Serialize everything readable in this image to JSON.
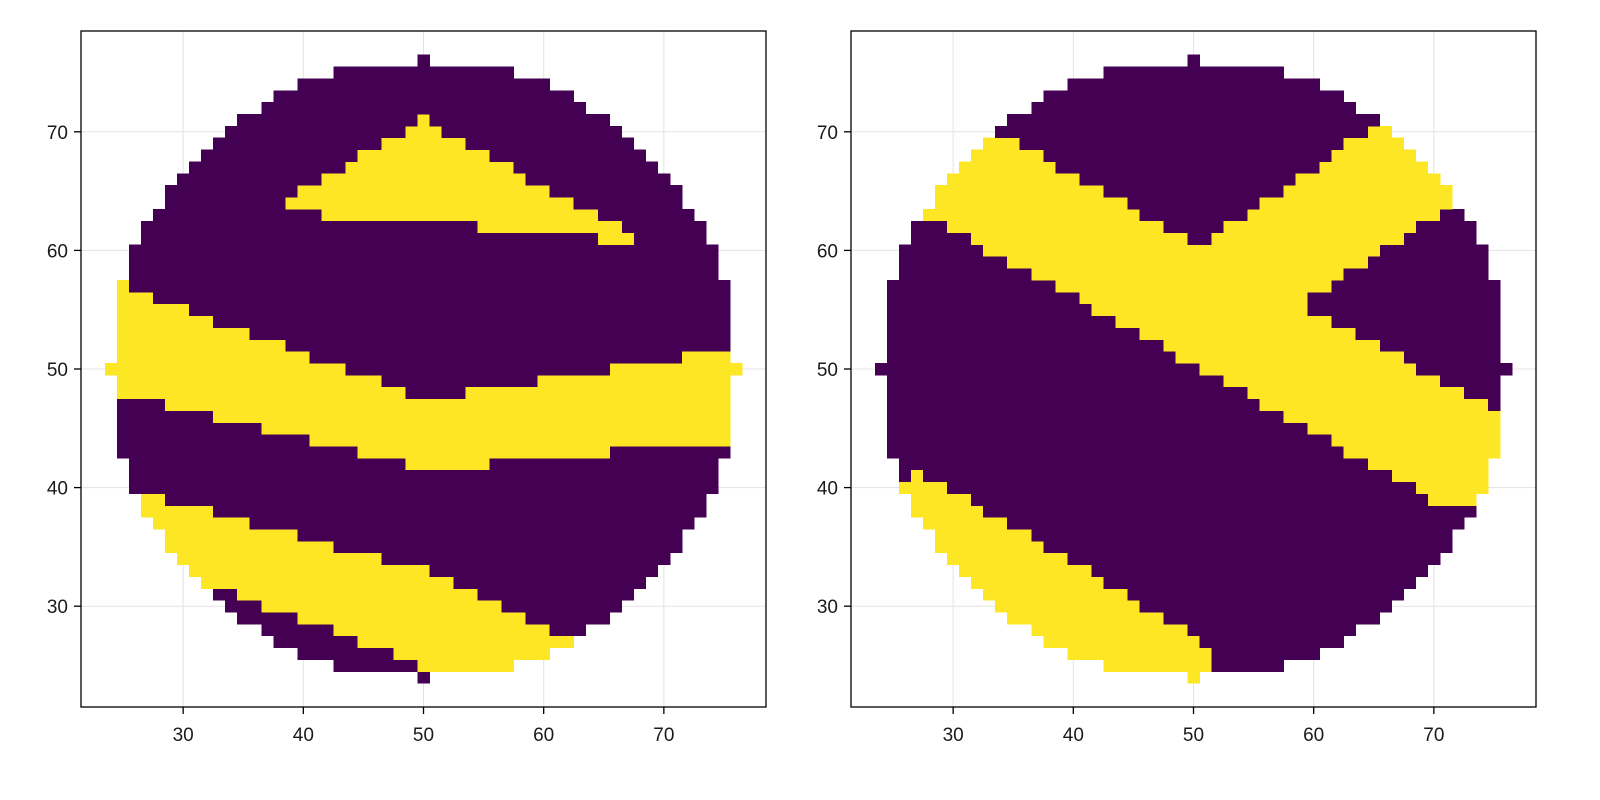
{
  "chart_data": [
    {
      "type": "heatmap",
      "title": "",
      "xlabel": "",
      "ylabel": "",
      "xlim": [
        21.5,
        78.5
      ],
      "ylim": [
        21.5,
        78.5
      ],
      "xticks": [
        30,
        40,
        50,
        60,
        70
      ],
      "yticks": [
        30,
        40,
        50,
        60,
        70
      ],
      "xtick_labels": [
        "30",
        "40",
        "50",
        "60",
        "70"
      ],
      "ytick_labels": [
        "30",
        "40",
        "50",
        "60",
        "70"
      ],
      "grid": true,
      "mask": "disk, center (50, 50), radius 26 (integer cells)",
      "colormap": {
        "0": "#440154",
        "1": "#fde725"
      },
      "pattern": "banded",
      "bands": [
        {
          "label": "top yellow band",
          "value": 1,
          "upper": [
            [
              25,
              56
            ],
            [
              50,
              71
            ],
            [
              75,
              57
            ]
          ],
          "lower": [
            [
              25,
              64
            ],
            [
              50,
              62.5
            ],
            [
              75,
              60
            ]
          ]
        },
        {
          "label": "middle yellow band",
          "value": 1,
          "upper": [
            [
              25,
              57
            ],
            [
              50,
              47.5
            ],
            [
              75,
              51.5
            ]
          ],
          "lower": [
            [
              25,
              48
            ],
            [
              50,
              41.5
            ],
            [
              75,
              44
            ]
          ]
        },
        {
          "label": "bottom yellow band",
          "value": 1,
          "upper": [
            [
              25,
              40
            ],
            [
              50,
              33
            ],
            [
              75,
              21
            ]
          ],
          "lower": [
            [
              25,
              34.5
            ],
            [
              50,
              25
            ],
            [
              75,
              21
            ]
          ]
        }
      ]
    },
    {
      "type": "heatmap",
      "title": "",
      "xlabel": "",
      "ylabel": "",
      "xlim": [
        21.5,
        78.5
      ],
      "ylim": [
        21.5,
        78.5
      ],
      "xticks": [
        30,
        40,
        50,
        60,
        70
      ],
      "yticks": [
        30,
        40,
        50,
        60,
        70
      ],
      "xtick_labels": [
        "30",
        "40",
        "50",
        "60",
        "70"
      ],
      "ytick_labels": [
        "30",
        "40",
        "50",
        "60",
        "70"
      ],
      "grid": true,
      "mask": "disk, center (50, 50), radius 26 (integer cells)",
      "colormap": {
        "0": "#440154",
        "1": "#fde725"
      },
      "pattern": "diagonal",
      "bands": [
        {
          "label": "upper-left yellow band",
          "value": 1,
          "line": [
            [
              28,
              68
            ],
            [
              72,
              43
            ]
          ],
          "half_width": 4.5,
          "x_range": [
            26,
            76
          ]
        },
        {
          "label": "upper-right yellow band",
          "value": 1,
          "line": [
            [
              52,
              56
            ],
            [
              68,
              67
            ]
          ],
          "half_width": 4.5,
          "x_range": [
            52,
            76
          ]
        },
        {
          "label": "lower-left yellow band",
          "value": 1,
          "line": [
            [
              27,
              37
            ],
            [
              48,
              24
            ]
          ],
          "half_width": 4,
          "x_range": [
            24,
            52
          ]
        }
      ]
    }
  ]
}
